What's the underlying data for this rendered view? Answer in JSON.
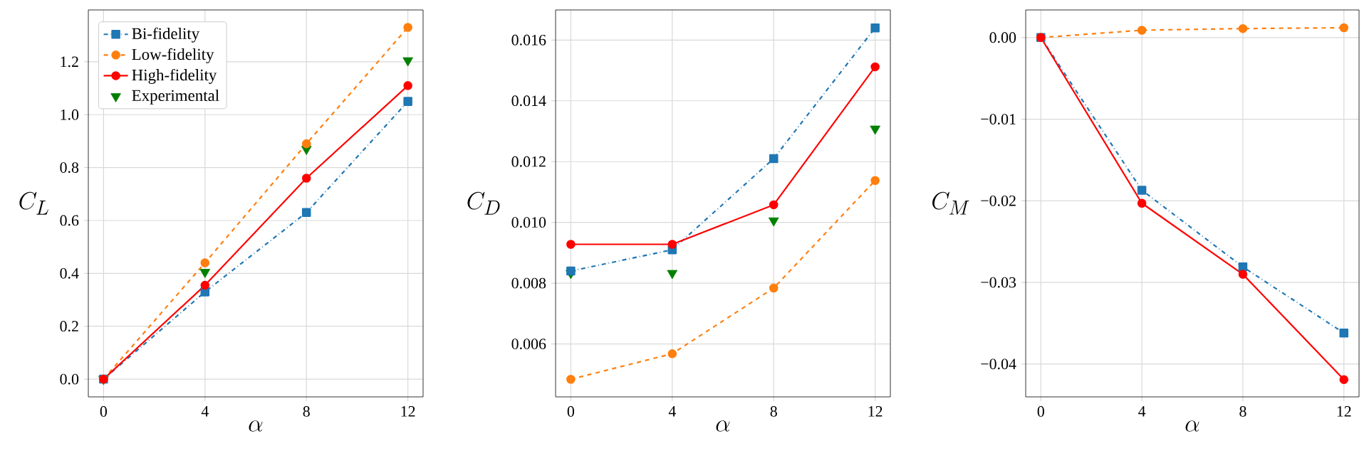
{
  "chart_data": [
    {
      "type": "line",
      "xlabel": "\\alpha",
      "ylabel": "C_L",
      "x": [
        0,
        4,
        8,
        12
      ],
      "xlim": [
        -0.6,
        12.6
      ],
      "xticks": [
        0,
        4,
        8,
        12
      ],
      "ylim": [
        -0.067,
        1.396
      ],
      "yticks": [
        {
          "value": 0,
          "label": "0.0"
        },
        {
          "value": 0.2,
          "label": "0.2"
        },
        {
          "value": 0.4,
          "label": "0.4"
        },
        {
          "value": 0.6,
          "label": "0.6"
        },
        {
          "value": 0.8,
          "label": "0.8"
        },
        {
          "value": 1.0,
          "label": "1.0"
        },
        {
          "value": 1.2,
          "label": "1.2"
        }
      ],
      "grid": true,
      "legend": "top left",
      "series": [
        {
          "name": "Bi-fidelity",
          "color": "#1f77b4",
          "marker": "square",
          "line_style": "dashdot",
          "values": [
            0,
            0.33,
            0.63,
            1.05
          ]
        },
        {
          "name": "Low-fidelity",
          "color": "#ff7f0e",
          "marker": "circle",
          "line_style": "dashed",
          "values": [
            0,
            0.44,
            0.89,
            1.33
          ]
        },
        {
          "name": "High-fidelity",
          "color": "#ff0000",
          "marker": "circle",
          "line_style": "solid",
          "values": [
            0,
            0.355,
            0.76,
            1.11
          ]
        },
        {
          "name": "Experimental",
          "type": "scatter",
          "color": "#008000",
          "marker": "triangle_down",
          "values": [
            0,
            0.405,
            0.87,
            1.205
          ]
        }
      ]
    },
    {
      "type": "line",
      "xlabel": "\\alpha",
      "ylabel": "C_D",
      "x": [
        0,
        4,
        8,
        12
      ],
      "xlim": [
        -0.6,
        12.6
      ],
      "xticks": [
        0,
        4,
        8,
        12
      ],
      "ylim": [
        0.00426,
        0.01699
      ],
      "yticks": [
        {
          "value": 0.006,
          "label": "0.006"
        },
        {
          "value": 0.008,
          "label": "0.008"
        },
        {
          "value": 0.01,
          "label": "0.010"
        },
        {
          "value": 0.012,
          "label": "0.012"
        },
        {
          "value": 0.014,
          "label": "0.014"
        },
        {
          "value": 0.016,
          "label": "0.016"
        }
      ],
      "grid": true,
      "series": [
        {
          "color": "#1f77b4",
          "marker": "square",
          "line_style": "dashdot",
          "values": [
            0.0084,
            0.0091,
            0.0121,
            0.0164
          ]
        },
        {
          "color": "#ff7f0e",
          "marker": "circle",
          "line_style": "dashed",
          "values": [
            0.00484,
            0.00568,
            0.00784,
            0.01138
          ]
        },
        {
          "color": "#ff0000",
          "marker": "circle",
          "line_style": "solid",
          "values": [
            0.00928,
            0.00928,
            0.01058,
            0.01512
          ]
        },
        {
          "type": "scatter",
          "color": "#008000",
          "marker": "triangle_down",
          "values": [
            0.00833,
            0.00833,
            0.01006,
            0.01308
          ]
        }
      ]
    },
    {
      "type": "line",
      "xlabel": "\\alpha",
      "ylabel": "C_M",
      "x": [
        0,
        4,
        8,
        12
      ],
      "xlim": [
        -0.6,
        12.6
      ],
      "xticks": [
        0,
        4,
        8,
        12
      ],
      "ylim": [
        -0.04402,
        0.00338
      ],
      "yticks": [
        {
          "value": -0.04,
          "label": "−0.04"
        },
        {
          "value": -0.03,
          "label": "−0.03"
        },
        {
          "value": -0.02,
          "label": "−0.02"
        },
        {
          "value": -0.01,
          "label": "−0.01"
        },
        {
          "value": 0,
          "label": "0.00"
        }
      ],
      "grid": true,
      "series": [
        {
          "color": "#1f77b4",
          "marker": "square",
          "line_style": "dashdot",
          "values": [
            0,
            -0.0187,
            -0.0281,
            -0.0362
          ]
        },
        {
          "color": "#ff7f0e",
          "marker": "circle",
          "line_style": "dashed",
          "values": [
            0,
            0.0009,
            0.0011,
            0.0012
          ]
        },
        {
          "color": "#ff0000",
          "marker": "circle",
          "line_style": "solid",
          "values": [
            0,
            -0.0203,
            -0.029,
            -0.0419
          ]
        }
      ]
    }
  ]
}
